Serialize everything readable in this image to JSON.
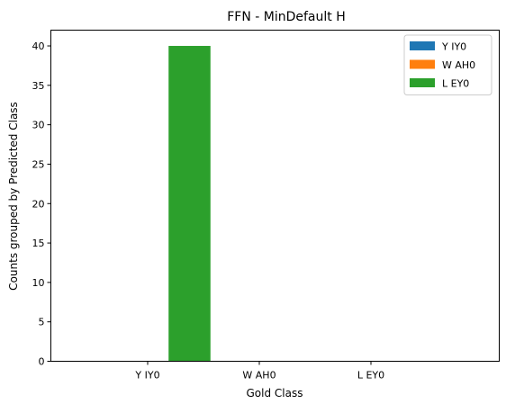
{
  "chart_data": {
    "type": "bar",
    "title": "FFN - MinDefault H",
    "xlabel": "Gold Class",
    "ylabel": "Counts grouped by Predicted Class",
    "categories": [
      "Y IY0",
      "W AH0",
      "L EY0"
    ],
    "series": [
      {
        "name": "Y IY0",
        "color": "#1f77b4",
        "values": [
          0,
          0,
          0
        ]
      },
      {
        "name": "W AH0",
        "color": "#ff7f0e",
        "values": [
          0,
          0,
          0
        ]
      },
      {
        "name": "L EY0",
        "color": "#2ca02c",
        "values": [
          40,
          0,
          0
        ]
      }
    ],
    "ylim": [
      0,
      42
    ],
    "yticks": [
      0,
      5,
      10,
      15,
      20,
      25,
      30,
      35,
      40
    ],
    "legend_position": "top-right",
    "grid": false
  }
}
